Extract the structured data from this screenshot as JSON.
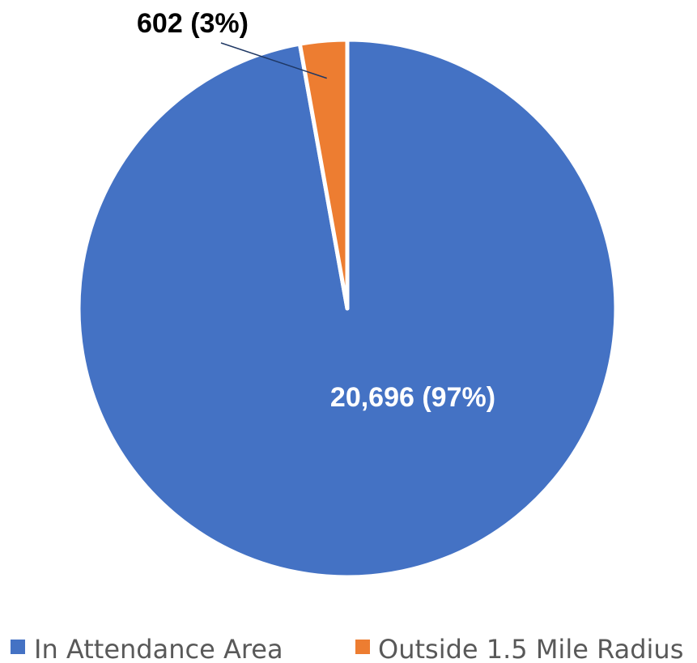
{
  "chart_data": {
    "type": "pie",
    "title": "",
    "slices": [
      {
        "name": "In Attendance Area",
        "value": 20696,
        "percent_label": "20,696 (97%)",
        "color": "#4472c4"
      },
      {
        "name": "Outside 1.5 Mile Radius",
        "value": 602,
        "percent_label": "602 (3%)",
        "color": "#ed7d31"
      }
    ],
    "legend": {
      "position": "bottom"
    },
    "start_angle_deg": 0,
    "direction": "clockwise"
  }
}
